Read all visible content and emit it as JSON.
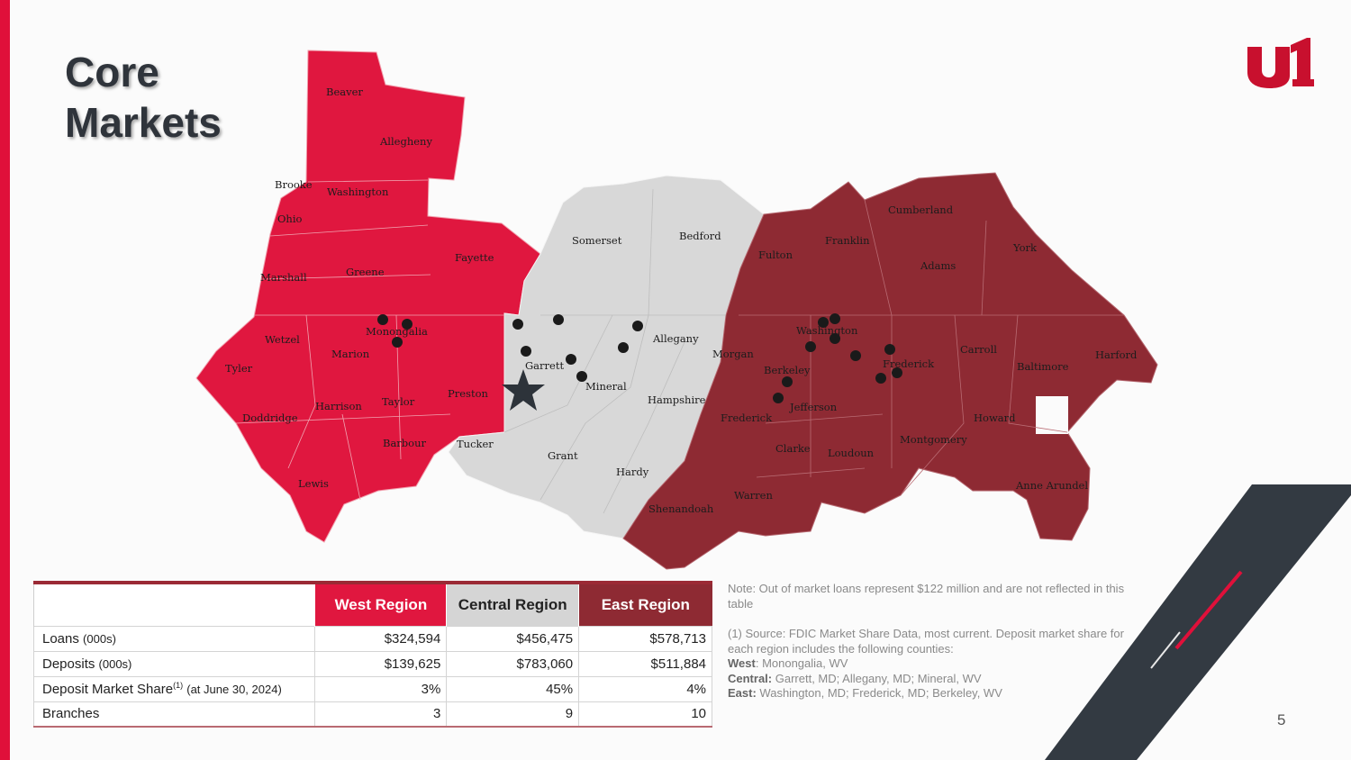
{
  "slide": {
    "title_line1": "Core",
    "title_line2": "Markets",
    "page_number": "5",
    "brand_color": "#e0103a",
    "logo_icon": "united-bank-u1-logo"
  },
  "map": {
    "region_colors": {
      "west": "#e0173f",
      "central": "#d8d8d8",
      "east": "#8e2a33"
    },
    "headquarters_marker": "star-icon",
    "branch_marker": "dot-icon",
    "counties": {
      "west": [
        "Beaver",
        "Allegheny",
        "Brooke",
        "Washington",
        "Ohio",
        "Fayette",
        "Marshall",
        "Greene",
        "Wetzel",
        "Monongalia",
        "Marion",
        "Tyler",
        "Harrison",
        "Taylor",
        "Preston",
        "Doddridge",
        "Barbour",
        "Lewis"
      ],
      "central": [
        "Somerset",
        "Bedford",
        "Allegany",
        "Garrett",
        "Mineral",
        "Hampshire",
        "Tucker",
        "Grant",
        "Hardy"
      ],
      "east": [
        "Cumberland",
        "Franklin",
        "York",
        "Fulton",
        "Adams",
        "Washington",
        "Carroll",
        "Harford",
        "Morgan",
        "Berkeley",
        "Frederick",
        "Baltimore",
        "Jefferson",
        "Howard",
        "Frederick",
        "Clarke",
        "Loudoun",
        "Montgomery",
        "Anne Arundel",
        "Warren",
        "Shenandoah"
      ]
    }
  },
  "table": {
    "headers": [
      "West Region",
      "Central Region",
      "East Region"
    ],
    "rows": [
      {
        "label": "Loans",
        "unit": "(000s)",
        "values": [
          "$324,594",
          "$456,475",
          "$578,713"
        ]
      },
      {
        "label": "Deposits",
        "unit": "(000s)",
        "values": [
          "$139,625",
          "$783,060",
          "$511,884"
        ]
      },
      {
        "label": "Deposit Market Share",
        "sup": "(1)",
        "unit": "(at June 30, 2024)",
        "values": [
          "3%",
          "45%",
          "4%"
        ]
      },
      {
        "label": "Branches",
        "unit": "",
        "values": [
          "3",
          "9",
          "10"
        ]
      }
    ]
  },
  "notes": {
    "note": "Note: Out of market loans represent $122 million and are not reflected in this table",
    "source": "(1) Source: FDIC Market Share Data, most current.  Deposit market share for each region includes the following counties:",
    "west_label": "West",
    "west_counties": "Monongalia, WV",
    "central_label": "Central:",
    "central_counties": "Garrett, MD; Allegany, MD; Mineral, WV",
    "east_label": "East:",
    "east_counties": "Washington, MD; Frederick, MD; Berkeley, WV"
  }
}
